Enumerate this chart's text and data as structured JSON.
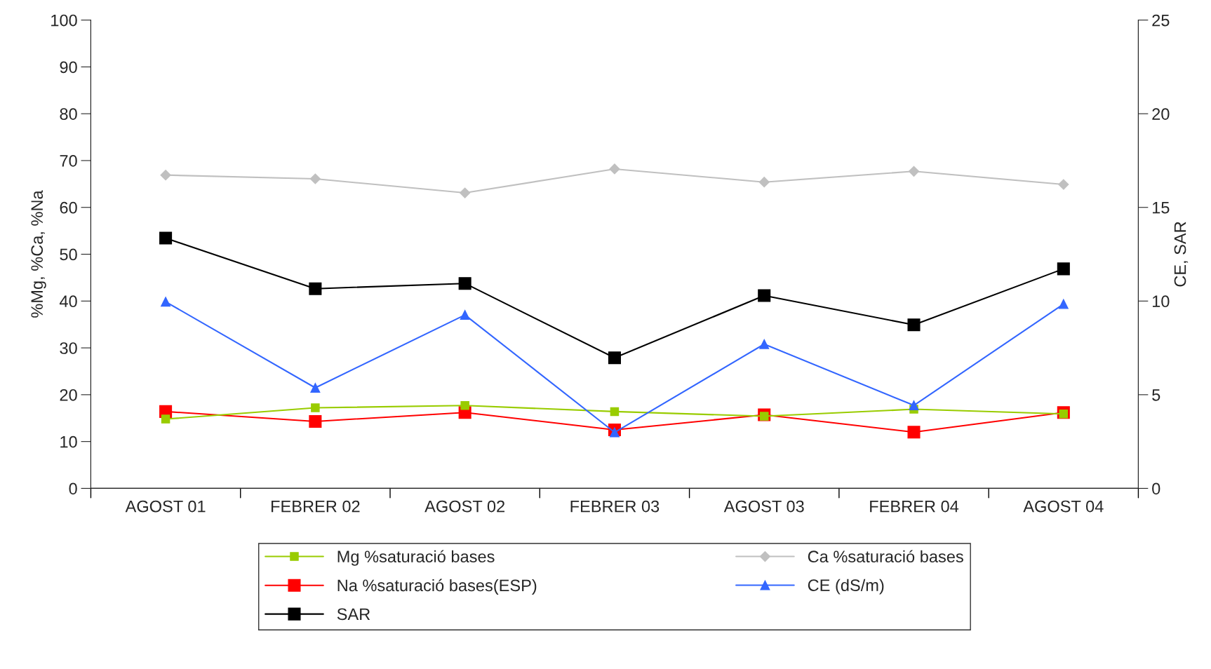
{
  "chart_data": {
    "type": "line",
    "ylabel": "%Mg, %Ca, %Na",
    "y2label": "CE, SAR",
    "categories": [
      "AGOST 01",
      "FEBRER 02",
      "AGOST 02",
      "FEBRER 03",
      "AGOST 03",
      "FEBRER 04",
      "AGOST 04"
    ],
    "ylim": [
      0,
      100
    ],
    "yticks": [
      0,
      10,
      20,
      30,
      40,
      50,
      60,
      70,
      80,
      90,
      100
    ],
    "y2lim": [
      0,
      25
    ],
    "y2ticks": [
      0,
      5,
      10,
      15,
      20,
      25
    ],
    "grid": false,
    "legend": "bottom",
    "line_style": "solid",
    "series": [
      {
        "name": "Mg %saturació bases",
        "color": "#99cc00",
        "marker": "square",
        "values": [
          14.8,
          17.2,
          17.7,
          16.4,
          15.4,
          16.9,
          15.9
        ]
      },
      {
        "name": "Ca %saturació bases",
        "color": "#c0c0c0",
        "marker": "diamond",
        "values": [
          66.9,
          66.1,
          63.1,
          68.2,
          65.4,
          67.7,
          64.9
        ]
      },
      {
        "name": "Na %saturació bases(ESP)",
        "color": "#ff0000",
        "marker": "square",
        "values": [
          16.4,
          14.3,
          16.2,
          12.5,
          15.7,
          12.0,
          16.2
        ]
      },
      {
        "name": "CE (dS/m)",
        "color": "#3366ff",
        "marker": "triangle",
        "axis": "y2",
        "values": [
          9.96,
          5.37,
          9.26,
          2.99,
          7.7,
          4.43,
          9.84
        ]
      },
      {
        "name": "SAR",
        "color": "#000000",
        "marker": "square",
        "axis": "y2",
        "values": [
          13.36,
          10.66,
          10.94,
          6.97,
          10.29,
          8.73,
          11.72
        ]
      }
    ]
  }
}
